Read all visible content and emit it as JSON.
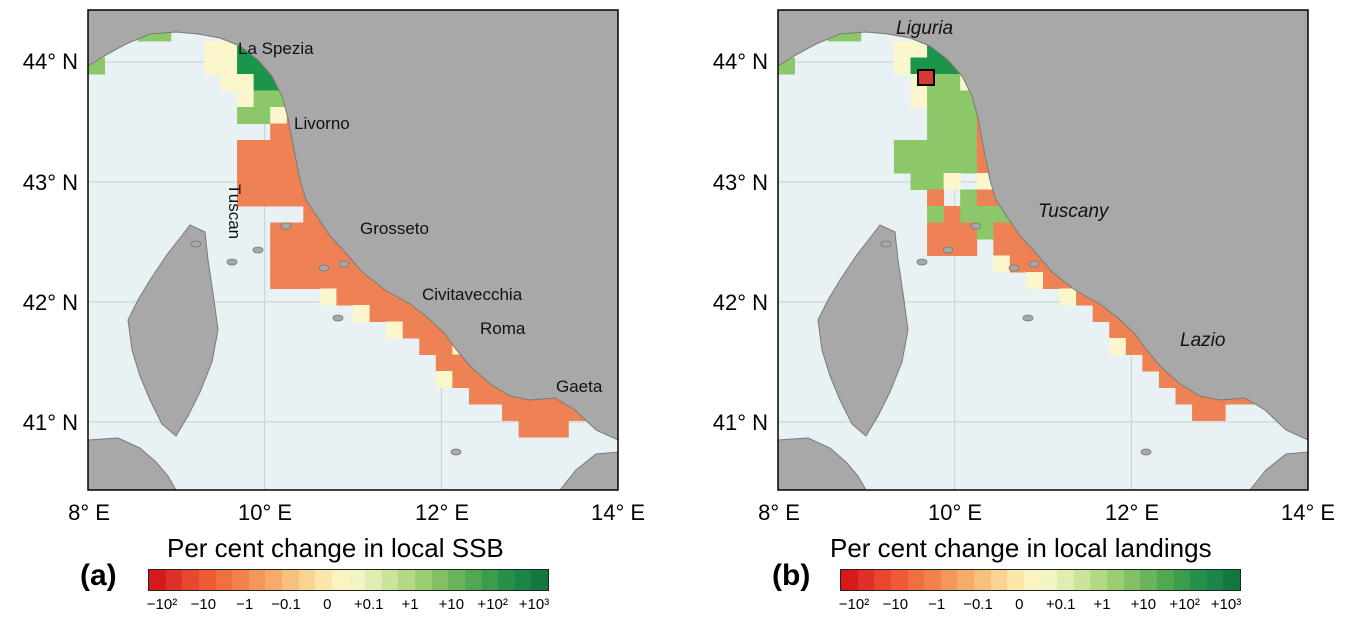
{
  "panels": [
    {
      "letter": "(a)",
      "colorbar_title": "Per cent change in local SSB",
      "places": [
        "La Spezia",
        "Livorno",
        "Tuscan",
        "Grosseto",
        "Civitavecchia",
        "Roma",
        "Gaeta"
      ]
    },
    {
      "letter": "(b)",
      "colorbar_title": "Per cent change in local landings",
      "regions": [
        "Liguria",
        "Tuscany",
        "Lazio"
      ]
    }
  ],
  "axes": {
    "lat_ticks": [
      "44° N",
      "43° N",
      "42° N",
      "41° N"
    ],
    "lon_ticks": [
      "8° E",
      "10° E",
      "12° E",
      "14° E"
    ]
  },
  "colorbar_ticks": [
    "−10²",
    "−10",
    "−1",
    "−0.1",
    "0",
    "+0.1",
    "+1",
    "+10",
    "+10²",
    "+10³"
  ],
  "colors": {
    "sea": "#e8f1f3",
    "land": "#a8a8a8",
    "strong_decline": "#d62a2a",
    "decline": "#ef8255",
    "neutral": "#fbf6cb",
    "gain": "#8cc86a",
    "strong_gain": "#1b9549",
    "highlight_cell": "#d93a30"
  }
}
